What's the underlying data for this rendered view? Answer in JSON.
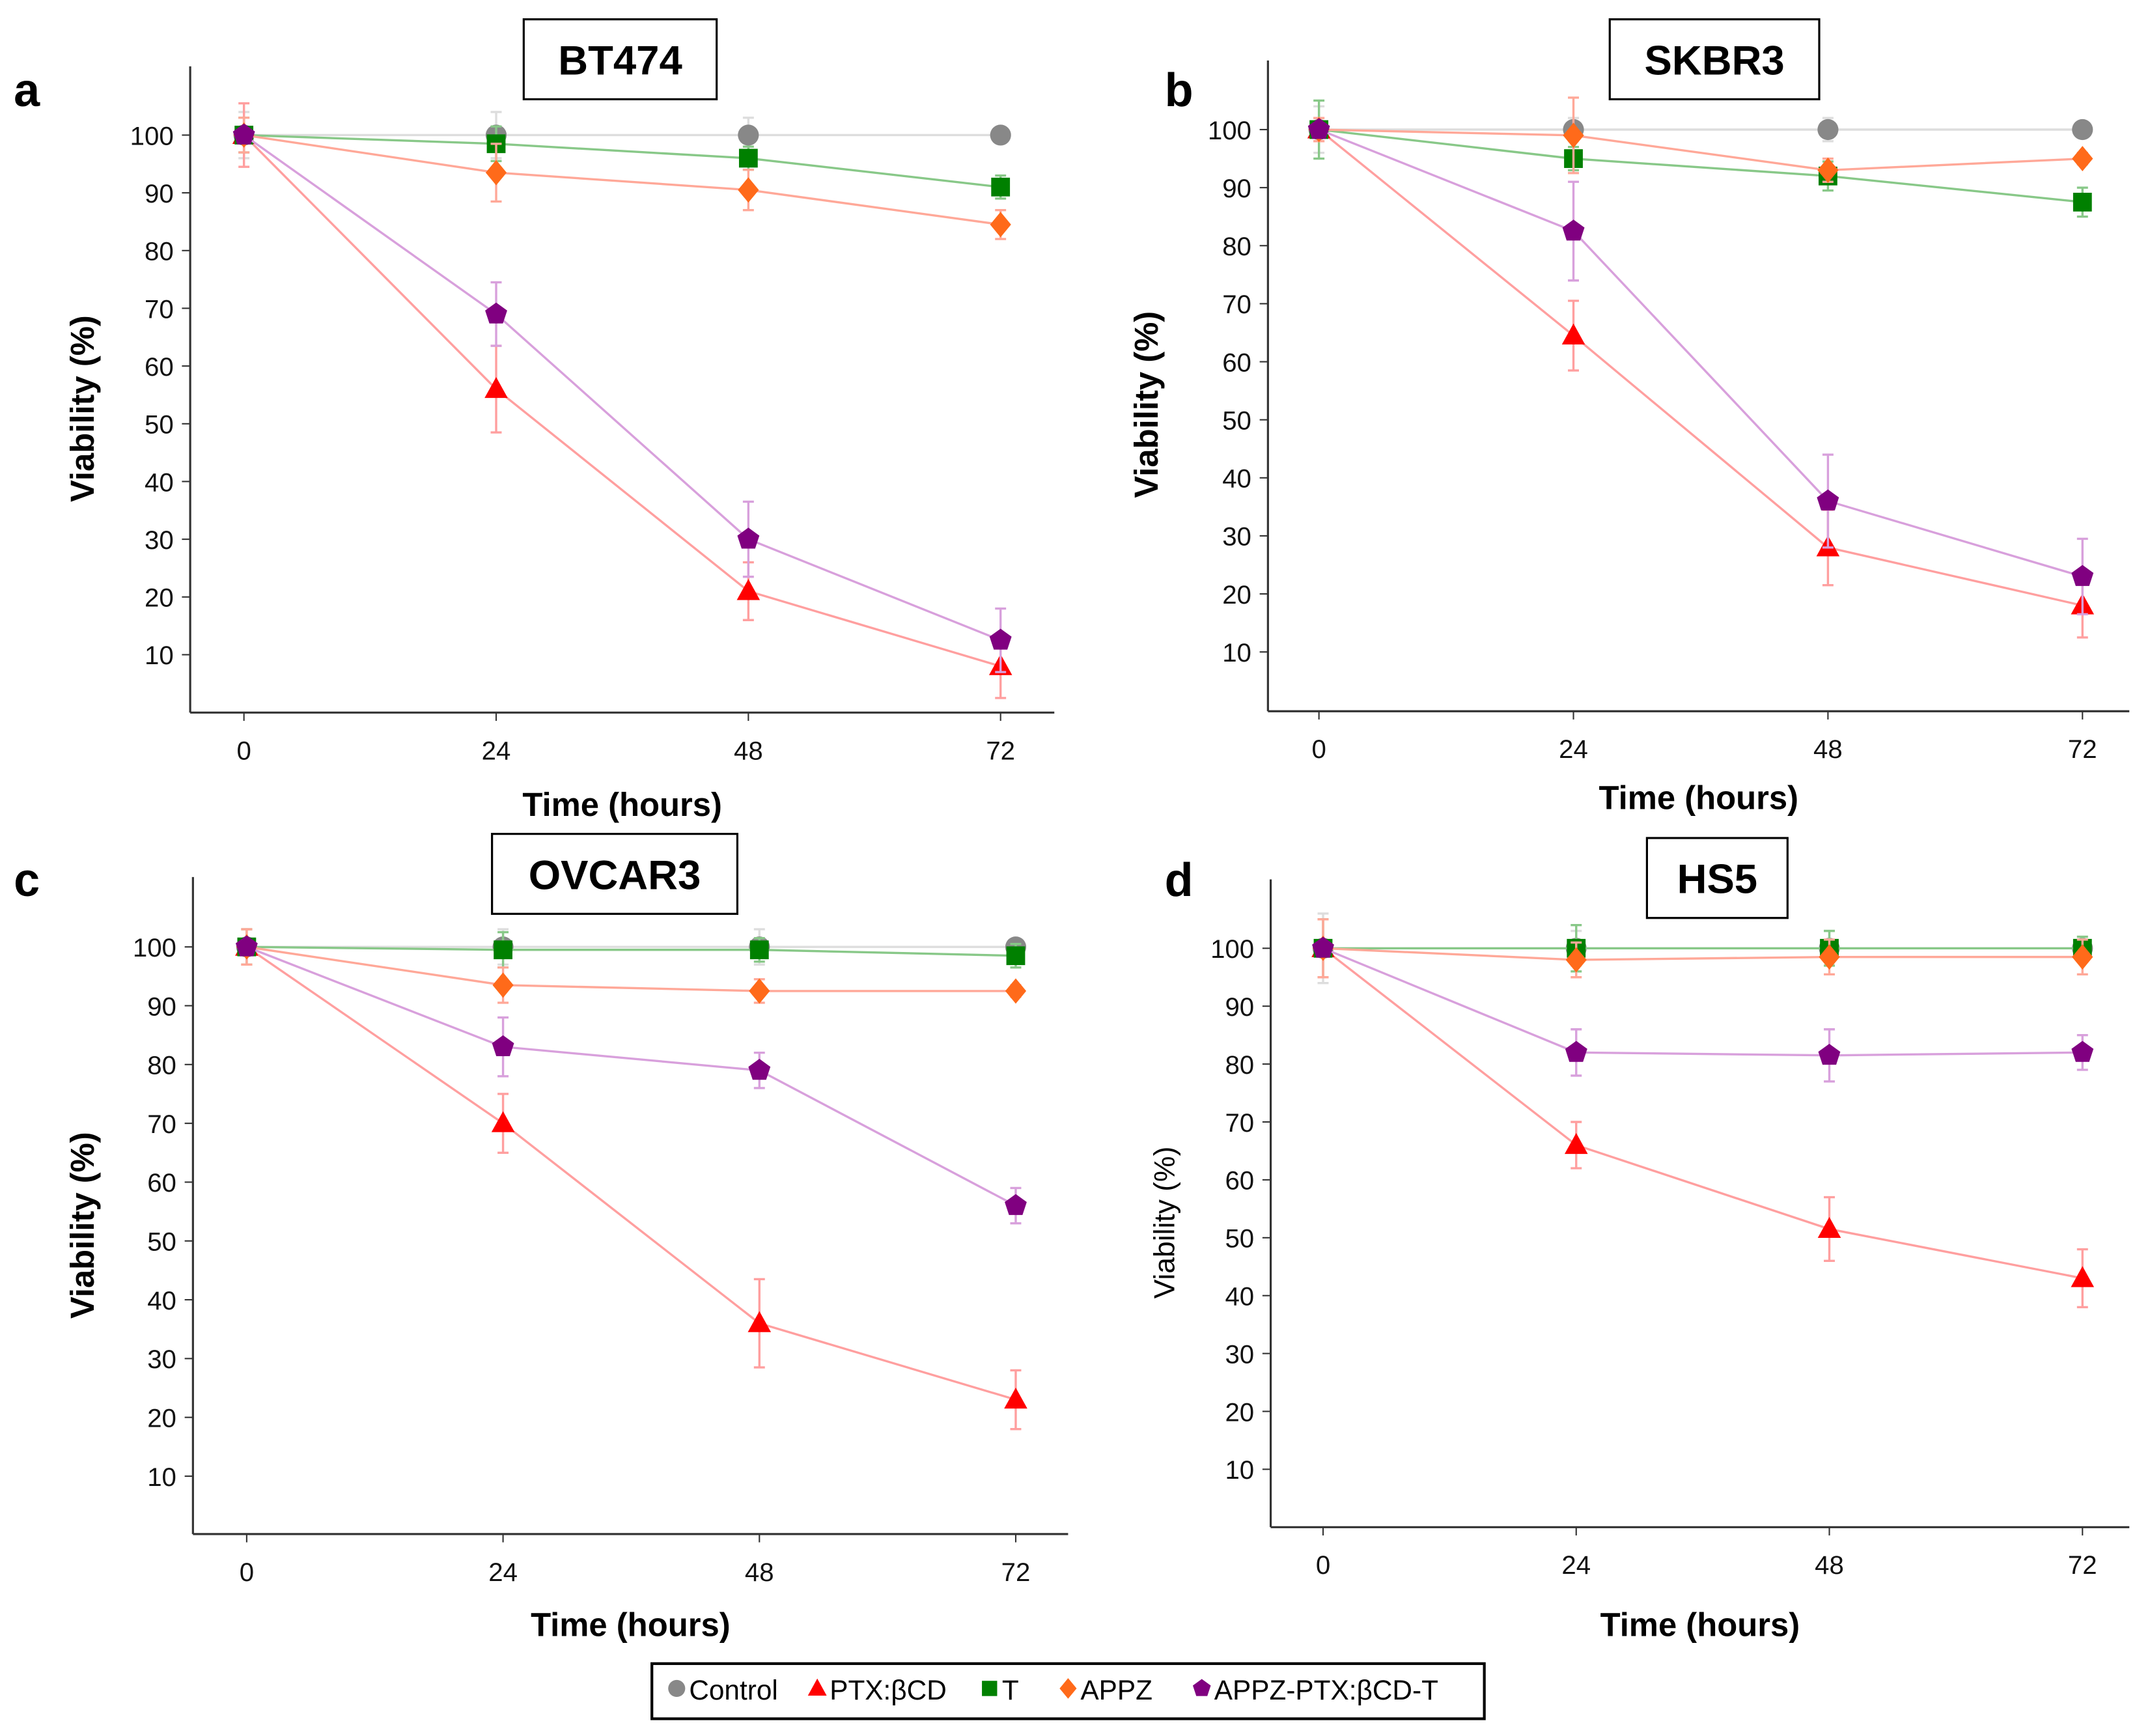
{
  "legend": [
    {
      "name": "Control",
      "marker": "circle",
      "color": "#888888",
      "line": "#dddddd"
    },
    {
      "name": "PTX:βCD",
      "marker": "triangle",
      "color": "#ff0000",
      "line": "#ff9f9f"
    },
    {
      "name": "T",
      "marker": "square",
      "color": "#008000",
      "line": "#88c888"
    },
    {
      "name": "APPZ",
      "marker": "diamond",
      "color": "#ff6a1a",
      "line": "#ffa898"
    },
    {
      "name": "APPZ-PTX:βCD-T",
      "marker": "pentagon",
      "color": "#800080",
      "line": "#d8a0dc"
    }
  ],
  "chart_data": [
    {
      "type": "line",
      "panel": "a",
      "title": "BT474",
      "xlabel": "Time (hours)",
      "ylabel": "Viability (%)",
      "x": [
        0,
        24,
        48,
        72
      ],
      "xticks": [
        "0",
        "24",
        "48",
        "72"
      ],
      "yticks": [
        "10",
        "20",
        "30",
        "40",
        "50",
        "60",
        "70",
        "80",
        "90",
        "100"
      ],
      "ylim": [
        0,
        110
      ],
      "series": [
        {
          "name": "Control",
          "values": [
            100,
            100,
            100,
            100
          ],
          "err": [
            4,
            4,
            3,
            0
          ]
        },
        {
          "name": "PTX:βCD",
          "values": [
            100,
            56,
            21,
            8
          ],
          "err": [
            5.5,
            7.5,
            5,
            5.5
          ]
        },
        {
          "name": "T",
          "values": [
            100,
            98.5,
            96,
            91
          ],
          "err": [
            3,
            3,
            2,
            2
          ]
        },
        {
          "name": "APPZ",
          "values": [
            100,
            93.5,
            90.5,
            84.5
          ],
          "err": [
            3,
            5,
            3.5,
            2.5
          ]
        },
        {
          "name": "APPZ-PTX:βCD-T",
          "values": [
            100,
            69,
            30,
            12.5
          ],
          "err": [
            0,
            5.5,
            6.5,
            5.5
          ]
        }
      ]
    },
    {
      "type": "line",
      "panel": "b",
      "title": "SKBR3",
      "xlabel": "Time (hours)",
      "ylabel": "Viability (%)",
      "x": [
        0,
        24,
        48,
        72
      ],
      "xticks": [
        "0",
        "24",
        "48",
        "72"
      ],
      "yticks": [
        "10",
        "20",
        "30",
        "40",
        "50",
        "60",
        "70",
        "80",
        "90",
        "100"
      ],
      "ylim": [
        0,
        110
      ],
      "series": [
        {
          "name": "Control",
          "values": [
            100,
            100,
            100,
            100
          ],
          "err": [
            4,
            2,
            2,
            1
          ]
        },
        {
          "name": "PTX:βCD",
          "values": [
            100,
            64.5,
            28,
            18
          ],
          "err": [
            2,
            6,
            6.5,
            5.5
          ]
        },
        {
          "name": "T",
          "values": [
            100,
            95,
            92,
            87.5
          ],
          "err": [
            5,
            2,
            2.5,
            2.5
          ]
        },
        {
          "name": "APPZ",
          "values": [
            100,
            99,
            93,
            95
          ],
          "err": [
            2,
            6.5,
            2,
            1
          ]
        },
        {
          "name": "APPZ-PTX:βCD-T",
          "values": [
            100,
            82.5,
            36,
            23
          ],
          "err": [
            0,
            8.5,
            8,
            6.5
          ]
        }
      ]
    },
    {
      "type": "line",
      "panel": "c",
      "title": "OVCAR3",
      "xlabel": "Time (hours)",
      "ylabel": "Viability (%)",
      "x": [
        0,
        24,
        48,
        72
      ],
      "xticks": [
        "0",
        "24",
        "48",
        "72"
      ],
      "yticks": [
        "10",
        "20",
        "30",
        "40",
        "50",
        "60",
        "70",
        "80",
        "90",
        "100"
      ],
      "ylim": [
        0,
        110
      ],
      "series": [
        {
          "name": "Control",
          "values": [
            100,
            100,
            100,
            100
          ],
          "err": [
            3,
            3,
            3,
            1
          ]
        },
        {
          "name": "PTX:βCD",
          "values": [
            100,
            70,
            36,
            23
          ],
          "err": [
            3,
            5,
            7.5,
            5
          ]
        },
        {
          "name": "T",
          "values": [
            100,
            99.5,
            99.5,
            98.5
          ],
          "err": [
            3,
            3,
            2,
            2
          ]
        },
        {
          "name": "APPZ",
          "values": [
            100,
            93.5,
            92.5,
            92.5
          ],
          "err": [
            3,
            3,
            2,
            1
          ]
        },
        {
          "name": "APPZ-PTX:βCD-T",
          "values": [
            100,
            83,
            79,
            56
          ],
          "err": [
            0,
            5,
            3,
            3
          ]
        }
      ]
    },
    {
      "type": "line",
      "panel": "d",
      "title": "HS5",
      "xlabel": "Time (hours)",
      "ylabel": "Viability (%)",
      "x": [
        0,
        24,
        48,
        72
      ],
      "xticks": [
        "0",
        "24",
        "48",
        "72"
      ],
      "yticks": [
        "10",
        "20",
        "30",
        "40",
        "50",
        "60",
        "70",
        "80",
        "90",
        "100"
      ],
      "ylim": [
        0,
        110
      ],
      "series": [
        {
          "name": "Control",
          "values": [
            100,
            100,
            100,
            100
          ],
          "err": [
            6,
            3,
            3,
            2
          ]
        },
        {
          "name": "PTX:βCD",
          "values": [
            100,
            66,
            51.5,
            43
          ],
          "err": [
            5,
            4,
            5.5,
            5
          ]
        },
        {
          "name": "T",
          "values": [
            100,
            100,
            100,
            100
          ],
          "err": [
            5,
            4,
            3,
            2
          ]
        },
        {
          "name": "APPZ",
          "values": [
            100,
            98,
            98.5,
            98.5
          ],
          "err": [
            5,
            3,
            3,
            3
          ]
        },
        {
          "name": "APPZ-PTX:βCD-T",
          "values": [
            100,
            82,
            81.5,
            82
          ],
          "err": [
            0,
            4,
            4.5,
            3
          ]
        }
      ]
    }
  ]
}
